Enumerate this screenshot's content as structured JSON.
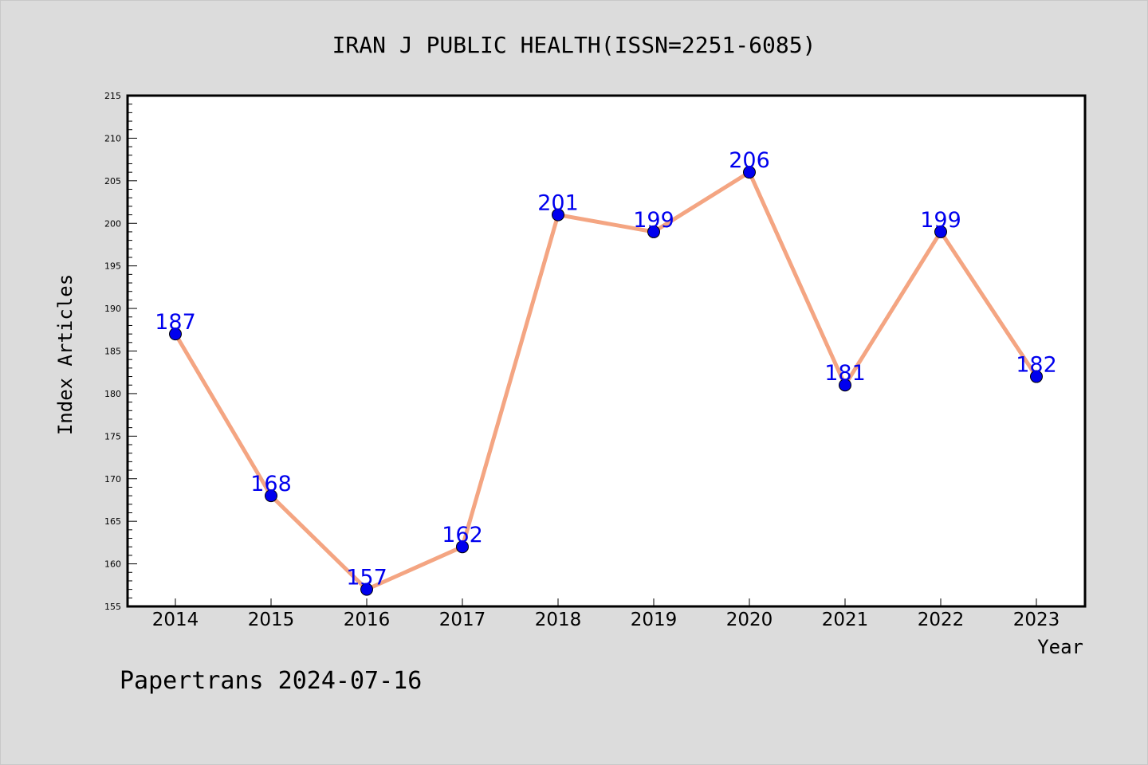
{
  "chart_data": {
    "type": "line",
    "title": "IRAN J PUBLIC HEALTH(ISSN=2251-6085)",
    "xlabel": "Year",
    "ylabel": "Index Articles",
    "categories": [
      "2014",
      "2015",
      "2016",
      "2017",
      "2018",
      "2019",
      "2020",
      "2021",
      "2022",
      "2023"
    ],
    "series": [
      {
        "values": [
          187,
          168,
          157,
          162,
          201,
          199,
          206,
          181,
          199,
          182
        ]
      }
    ],
    "ylim": [
      155,
      215
    ],
    "ytick_step": 5,
    "ytick_labels": [
      "155",
      "160",
      "165",
      "170",
      "175",
      "180",
      "185",
      "190",
      "195",
      "200",
      "205",
      "210",
      "215"
    ],
    "grid": false,
    "legend": "none",
    "line_color": "#f4a582",
    "marker_color": "#0000ee",
    "label_color": "#0000ee"
  },
  "footer": {
    "credit": "Papertrans 2024-07-16"
  }
}
